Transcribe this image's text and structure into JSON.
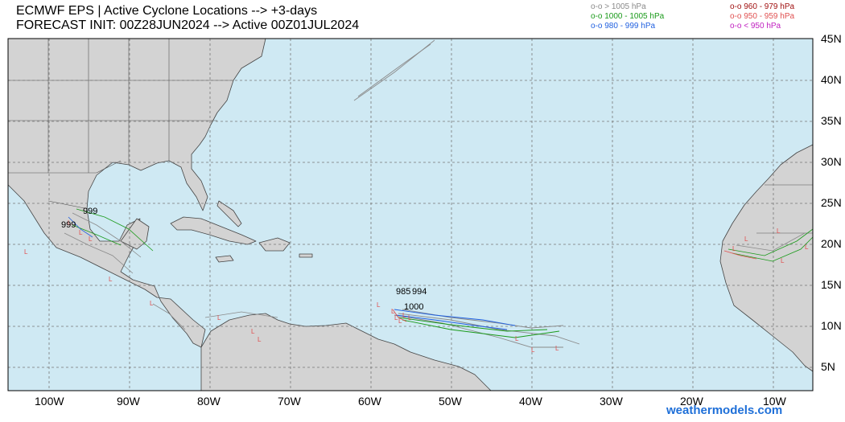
{
  "header": {
    "title_line1": "ECMWF EPS | Active Cyclone Locations --> +3-days",
    "title_line2": "FORECAST INIT: 00Z28JUN2024 --> Active 00Z01JUL2024"
  },
  "legend": [
    {
      "label": "o-o > 1005 hPa",
      "color": "#8a8a8a"
    },
    {
      "label": "o-o 1000 - 1005 hPa",
      "color": "#1a9a1a"
    },
    {
      "label": "o-o 980 - 999 hPa",
      "color": "#2060e0"
    },
    {
      "label": "o-o 960 - 979 hPa",
      "color": "#a01010"
    },
    {
      "label": "o-o 950 - 959 hPa",
      "color": "#e05050"
    },
    {
      "label": "o-o < 950 hPa",
      "color": "#c020c0"
    }
  ],
  "map": {
    "ocean_color": "#cfe9f3",
    "land_color": "#d3d3d3",
    "lat_labels": [
      "45N",
      "40N",
      "35N",
      "30N",
      "25N",
      "20N",
      "15N",
      "10N",
      "5N"
    ],
    "lon_labels": [
      "100W",
      "90W",
      "80W",
      "70W",
      "60W",
      "50W",
      "40W",
      "30W",
      "20W",
      "10W"
    ],
    "pressure_labels": [
      "999",
      "999",
      "985",
      "994",
      "1000"
    ]
  },
  "credit": "weathermodels.com"
}
